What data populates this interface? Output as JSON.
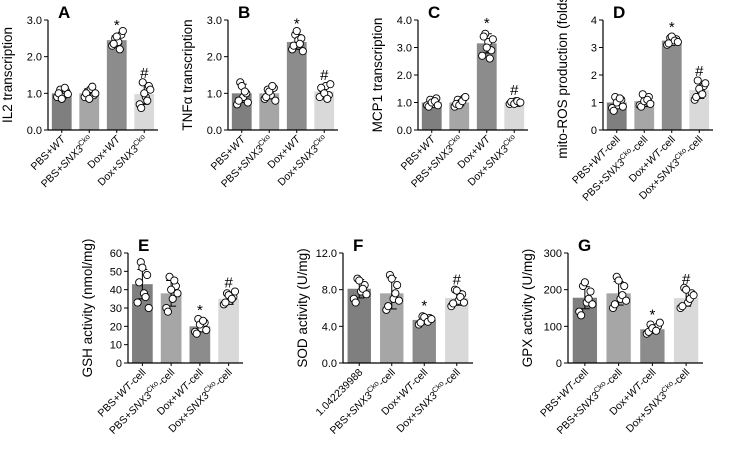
{
  "colors": {
    "bar": [
      "#7f7f7f",
      "#a6a6a6",
      "#8c8c8c",
      "#d9d9d9"
    ],
    "axis": "#000000",
    "point_fill": "#ffffff"
  },
  "chart_data": [
    {
      "panel": "A",
      "type": "bar",
      "ylabel": "IL2 transcription",
      "ylim": [
        0,
        3.0
      ],
      "yticks": [
        "0.0",
        "1.0",
        "2.0",
        "3.0"
      ],
      "tick_values": [
        0,
        1,
        2,
        3
      ],
      "categories": [
        {
          "pre": "PBS+",
          "italic": "WT",
          "sup": "",
          "post": ""
        },
        {
          "pre": "PBS+",
          "italic": "SNX3",
          "sup": "Cko",
          "post": ""
        },
        {
          "pre": "Dox+",
          "italic": "WT",
          "sup": "",
          "post": ""
        },
        {
          "pre": "Dox+",
          "italic": "SNX3",
          "sup": "Cko",
          "post": ""
        }
      ],
      "values": [
        1.0,
        1.0,
        2.45,
        0.98
      ],
      "errors": [
        0.13,
        0.12,
        0.12,
        0.28
      ],
      "points": [
        [
          0.9,
          1.1,
          0.95,
          1.05,
          1.0,
          0.85,
          1.15,
          0.98
        ],
        [
          0.9,
          1.05,
          1.12,
          0.95,
          1.0,
          0.85,
          1.18,
          1.0
        ],
        [
          2.3,
          2.5,
          2.4,
          2.6,
          2.35,
          2.55,
          2.2,
          2.7
        ],
        [
          0.7,
          1.3,
          0.9,
          1.2,
          0.6,
          1.0,
          0.8,
          1.1
        ]
      ],
      "marks": [
        "",
        "",
        "*",
        "#"
      ]
    },
    {
      "panel": "B",
      "type": "bar",
      "ylabel": "TNFα transcription",
      "ylim": [
        0,
        3.0
      ],
      "yticks": [
        "0.0",
        "1.0",
        "2.0",
        "3.0"
      ],
      "tick_values": [
        0,
        1,
        2,
        3
      ],
      "categories": [
        {
          "pre": "PBS+",
          "italic": "WT",
          "sup": "",
          "post": ""
        },
        {
          "pre": "PBS+",
          "italic": "SNX3",
          "sup": "Cko",
          "post": ""
        },
        {
          "pre": "Dox+",
          "italic": "WT",
          "sup": "",
          "post": ""
        },
        {
          "pre": "Dox+",
          "italic": "SNX3",
          "sup": "Cko",
          "post": ""
        }
      ],
      "values": [
        1.0,
        1.0,
        2.4,
        1.05
      ],
      "errors": [
        0.25,
        0.15,
        0.2,
        0.15
      ],
      "points": [
        [
          0.7,
          1.3,
          0.9,
          1.0,
          0.8,
          1.2,
          1.05,
          0.75
        ],
        [
          0.85,
          1.1,
          0.95,
          1.15,
          0.9,
          1.05,
          1.2,
          0.8
        ],
        [
          2.2,
          2.6,
          2.45,
          2.5,
          2.3,
          2.7,
          2.35,
          2.15
        ],
        [
          0.9,
          1.1,
          1.2,
          0.95,
          1.15,
          1.0,
          0.85,
          1.25
        ]
      ],
      "marks": [
        "",
        "",
        "*",
        "#"
      ]
    },
    {
      "panel": "C",
      "type": "bar",
      "ylabel": "MCP1 transcription",
      "ylim": [
        0,
        4.0
      ],
      "yticks": [
        "0.0",
        "1.0",
        "2.0",
        "3.0",
        "4.0"
      ],
      "tick_values": [
        0,
        1,
        2,
        3,
        4
      ],
      "categories": [
        {
          "pre": "PBS+",
          "italic": "WT",
          "sup": "",
          "post": ""
        },
        {
          "pre": "PBS+",
          "italic": "SNX3",
          "sup": "Cko",
          "post": ""
        },
        {
          "pre": "Dox+",
          "italic": "WT",
          "sup": "",
          "post": ""
        },
        {
          "pre": "Dox+",
          "italic": "SNX3",
          "sup": "Cko",
          "post": ""
        }
      ],
      "values": [
        1.0,
        1.0,
        3.15,
        1.0
      ],
      "errors": [
        0.12,
        0.12,
        0.35,
        0.05
      ],
      "points": [
        [
          0.9,
          1.1,
          0.95,
          1.15,
          0.85,
          1.0,
          1.05,
          0.9
        ],
        [
          0.85,
          1.1,
          1.0,
          1.15,
          0.95,
          0.9,
          1.05,
          1.2
        ],
        [
          2.7,
          3.5,
          3.2,
          2.9,
          3.4,
          3.0,
          2.6,
          3.3
        ],
        [
          0.95,
          1.0,
          1.05,
          0.98,
          1.02,
          0.95,
          1.05,
          1.0
        ]
      ],
      "marks": [
        "",
        "",
        "*",
        "#"
      ]
    },
    {
      "panel": "D",
      "type": "bar",
      "ylabel": "mito-ROS production (folds)",
      "ylim": [
        0,
        4.0
      ],
      "yticks": [
        "0",
        "1",
        "2",
        "3",
        "4"
      ],
      "tick_values": [
        0,
        1,
        2,
        3,
        4
      ],
      "categories": [
        {
          "pre": "PBS+",
          "italic": "WT",
          "sup": "",
          "post": "-cell"
        },
        {
          "pre": "PBS+",
          "italic": "SNX3",
          "sup": "Cko",
          "post": "-cell"
        },
        {
          "pre": "Dox+",
          "italic": "WT",
          "sup": "",
          "post": "-cell"
        },
        {
          "pre": "Dox+",
          "italic": "SNX3",
          "sup": "Cko",
          "post": "-cell"
        }
      ],
      "values": [
        1.0,
        1.05,
        3.25,
        1.45
      ],
      "errors": [
        0.2,
        0.2,
        0.1,
        0.3
      ],
      "points": [
        [
          0.8,
          1.2,
          0.9,
          1.1,
          0.7,
          1.0,
          1.15,
          0.85
        ],
        [
          0.9,
          1.3,
          1.0,
          1.2,
          0.85,
          1.05,
          1.1,
          0.95
        ],
        [
          3.1,
          3.35,
          3.2,
          3.3,
          3.15,
          3.4,
          3.25,
          3.2
        ],
        [
          1.1,
          1.8,
          1.4,
          1.6,
          1.2,
          1.5,
          1.3,
          1.7
        ]
      ],
      "marks": [
        "",
        "",
        "*",
        "#"
      ]
    },
    {
      "panel": "E",
      "type": "bar",
      "ylabel": "GSH activity (nmol/mg)",
      "ylim": [
        0,
        60
      ],
      "yticks": [
        "0",
        "10",
        "20",
        "30",
        "40",
        "50",
        "60"
      ],
      "tick_values": [
        0,
        10,
        20,
        30,
        40,
        50,
        60
      ],
      "categories": [
        {
          "pre": "PBS+",
          "italic": "WT",
          "sup": "",
          "post": "-cell"
        },
        {
          "pre": "PBS+",
          "italic": "SNX3",
          "sup": "Cko",
          "post": "-cell"
        },
        {
          "pre": "Dox+",
          "italic": "WT",
          "sup": "",
          "post": "-cell"
        },
        {
          "pre": "Dox+",
          "italic": "SNX3",
          "sup": "Cko",
          "post": "-cell"
        }
      ],
      "values": [
        43,
        38,
        20,
        35
      ],
      "errors": [
        8,
        7,
        3,
        3
      ],
      "points": [
        [
          33,
          55,
          38,
          48,
          44,
          52,
          36,
          30
        ],
        [
          30,
          47,
          35,
          42,
          28,
          40,
          45,
          38
        ],
        [
          17,
          24,
          19,
          22,
          16,
          21,
          23,
          18
        ],
        [
          32,
          38,
          34,
          36,
          33,
          37,
          35,
          39
        ]
      ],
      "marks": [
        "",
        "",
        "*",
        "#"
      ]
    },
    {
      "panel": "F",
      "type": "bar",
      "ylabel": "SOD activity (U/mg)",
      "ylim": [
        0,
        12
      ],
      "yticks": [
        "0.0",
        "4.0",
        "8.0",
        "12.0"
      ],
      "tick_values": [
        0,
        4,
        8,
        12
      ],
      "categories": [
        {
          "pre": "1.042239988",
          "italic": "",
          "sup": "",
          "post": ""
        },
        {
          "pre": "PBS+",
          "italic": "SNX3",
          "sup": "Cko",
          "post": "-cell"
        },
        {
          "pre": "Dox+",
          "italic": "WT",
          "sup": "",
          "post": "-cell"
        },
        {
          "pre": "Dox+",
          "italic": "SNX3",
          "sup": "Cko",
          "post": "-cell"
        }
      ],
      "values": [
        8.1,
        7.6,
        4.7,
        7.1
      ],
      "errors": [
        1.0,
        1.7,
        0.4,
        0.8
      ],
      "points": [
        [
          7.0,
          9.2,
          7.8,
          8.5,
          6.6,
          9.0,
          8.1,
          7.5
        ],
        [
          5.8,
          9.6,
          7.0,
          8.5,
          6.2,
          9.2,
          7.6,
          6.8
        ],
        [
          4.2,
          5.1,
          4.6,
          4.9,
          4.4,
          5.0,
          4.5,
          4.8
        ],
        [
          6.2,
          8.0,
          6.8,
          7.5,
          6.5,
          7.9,
          7.2,
          6.6
        ]
      ],
      "marks": [
        "",
        "",
        "*",
        "#"
      ]
    },
    {
      "panel": "G",
      "type": "bar",
      "ylabel": "GPX activity (U/mg)",
      "ylim": [
        0,
        300
      ],
      "yticks": [
        "0",
        "100",
        "200",
        "300"
      ],
      "tick_values": [
        0,
        100,
        200,
        300
      ],
      "categories": [
        {
          "pre": "PBS+",
          "italic": "WT",
          "sup": "",
          "post": "-cell"
        },
        {
          "pre": "PBS+",
          "italic": "SNX3",
          "sup": "Cko",
          "post": "-cell"
        },
        {
          "pre": "Dox+",
          "italic": "WT",
          "sup": "",
          "post": "-cell"
        },
        {
          "pre": "Dox+",
          "italic": "SNX3",
          "sup": "Cko",
          "post": "-cell"
        }
      ],
      "values": [
        178,
        190,
        92,
        177
      ],
      "errors": [
        30,
        32,
        10,
        22
      ],
      "points": [
        [
          140,
          210,
          165,
          195,
          130,
          220,
          175,
          160
        ],
        [
          150,
          235,
          175,
          210,
          160,
          225,
          185,
          170
        ],
        [
          80,
          105,
          90,
          100,
          85,
          95,
          88,
          110
        ],
        [
          150,
          205,
          165,
          190,
          155,
          200,
          175,
          185
        ]
      ],
      "marks": [
        "",
        "",
        "*",
        "#"
      ]
    }
  ]
}
